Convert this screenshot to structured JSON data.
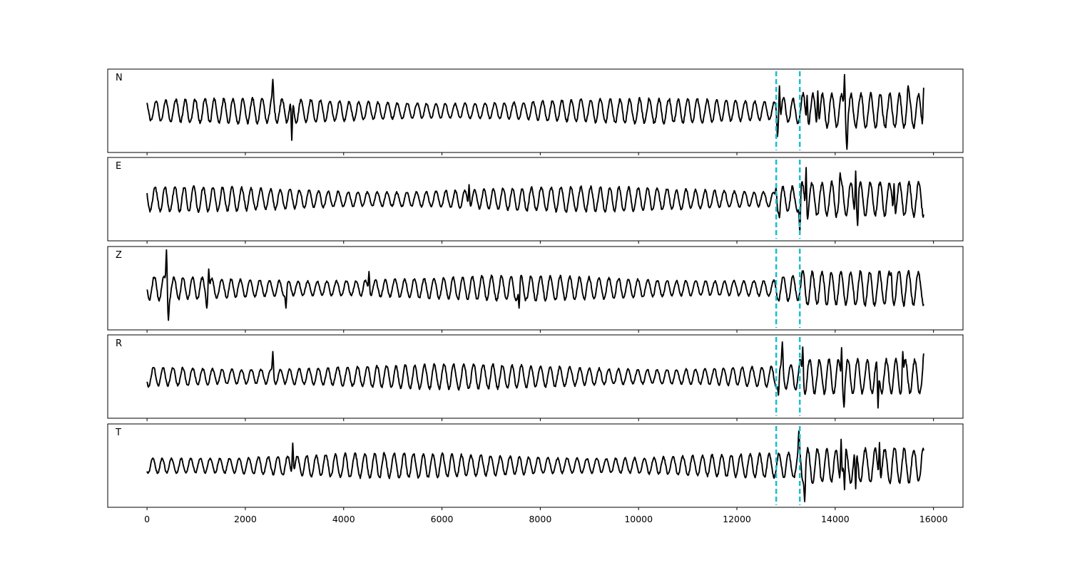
{
  "chart_data": {
    "type": "line",
    "title": "",
    "xlabel": "",
    "ylabel": "",
    "xlim": [
      -800,
      16600
    ],
    "ylim": [
      -1.3,
      1.3
    ],
    "x_ticks": [
      0,
      2000,
      4000,
      6000,
      8000,
      10000,
      12000,
      14000,
      16000
    ],
    "x_tick_labels": [
      "0",
      "2000",
      "4000",
      "6000",
      "8000",
      "10000",
      "12000",
      "14000",
      "16000"
    ],
    "shared_x": true,
    "grid": false,
    "y_ticks_visible": false,
    "line_color": "#000000",
    "marker_color": "#17becf",
    "x_start": 0,
    "x_end": 15800,
    "markers": [
      12800,
      13280
    ],
    "panels": [
      {
        "label": "N",
        "features": [
          {
            "x": 2560,
            "y": 0.98
          },
          {
            "x": 2940,
            "y": -0.92
          },
          {
            "x": 12870,
            "y": 0.78
          },
          {
            "x": 12830,
            "y": -0.8
          },
          {
            "x": 13430,
            "y": 0.48
          },
          {
            "x": 13650,
            "y": 0.62
          },
          {
            "x": 14190,
            "y": 1.13
          },
          {
            "x": 14240,
            "y": -1.2
          },
          {
            "x": 15480,
            "y": 0.78
          },
          {
            "x": 15800,
            "y": 0.72
          }
        ]
      },
      {
        "label": "E",
        "features": [
          {
            "x": 6550,
            "y": 0.45
          },
          {
            "x": 12800,
            "y": 0.38
          },
          {
            "x": 12870,
            "y": -0.58
          },
          {
            "x": 13280,
            "y": -1.08
          },
          {
            "x": 13410,
            "y": 1.03
          },
          {
            "x": 13440,
            "y": -0.62
          },
          {
            "x": 14100,
            "y": 0.82
          },
          {
            "x": 14420,
            "y": 0.88
          },
          {
            "x": 14460,
            "y": -0.82
          },
          {
            "x": 15200,
            "y": 0.48
          }
        ]
      },
      {
        "label": "Z",
        "features": [
          {
            "x": 400,
            "y": 1.2
          },
          {
            "x": 430,
            "y": -1.0
          },
          {
            "x": 1250,
            "y": 0.6
          },
          {
            "x": 1220,
            "y": -0.62
          },
          {
            "x": 4520,
            "y": 0.52
          },
          {
            "x": 2830,
            "y": -0.62
          },
          {
            "x": 7570,
            "y": -0.62
          },
          {
            "x": 15140,
            "y": 0.48
          }
        ]
      },
      {
        "label": "R",
        "features": [
          {
            "x": 2560,
            "y": 0.78
          },
          {
            "x": 12920,
            "y": 1.08
          },
          {
            "x": 12850,
            "y": -0.58
          },
          {
            "x": 13340,
            "y": 0.92
          },
          {
            "x": 14130,
            "y": 0.9
          },
          {
            "x": 14180,
            "y": -0.95
          },
          {
            "x": 14870,
            "y": -0.98
          },
          {
            "x": 15380,
            "y": 0.78
          },
          {
            "x": 15800,
            "y": 0.72
          }
        ]
      },
      {
        "label": "T",
        "features": [
          {
            "x": 2960,
            "y": 0.7
          },
          {
            "x": 13260,
            "y": 1.08
          },
          {
            "x": 13380,
            "y": -1.12
          },
          {
            "x": 14120,
            "y": 0.82
          },
          {
            "x": 14190,
            "y": -0.75
          },
          {
            "x": 14420,
            "y": -0.72
          },
          {
            "x": 14900,
            "y": 0.72
          }
        ]
      }
    ]
  }
}
